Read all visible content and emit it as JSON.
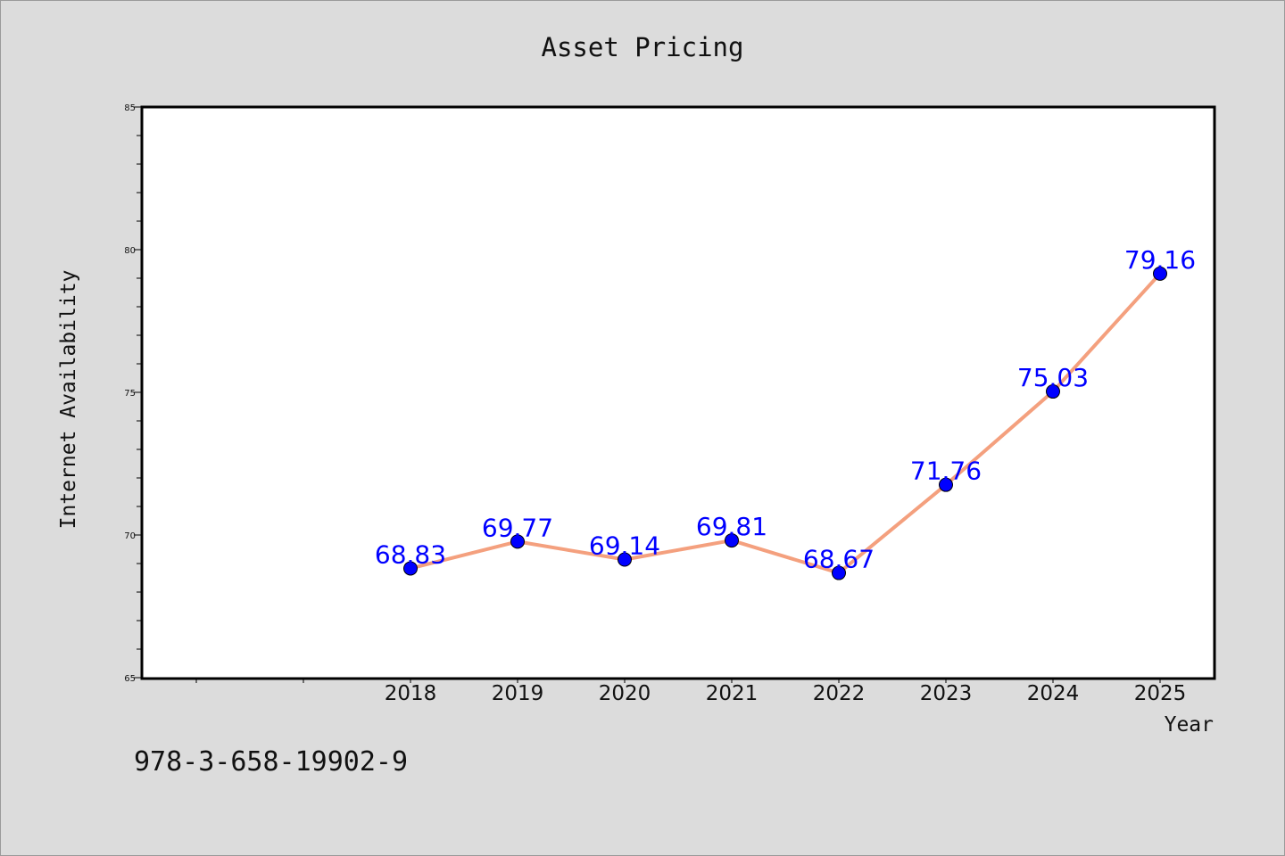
{
  "chart_data": {
    "type": "line",
    "title": "Asset Pricing",
    "xlabel": "Year",
    "ylabel": "Internet Availability",
    "x": [
      "2018",
      "2019",
      "2020",
      "2021",
      "2022",
      "2023",
      "2024",
      "2025"
    ],
    "series": [
      {
        "values": [
          68.83,
          69.77,
          69.14,
          69.81,
          68.67,
          71.76,
          75.03,
          79.16
        ],
        "labels": [
          "68.83",
          "69.77",
          "69.14",
          "69.81",
          "68.67",
          "71.76",
          "75.03",
          "79.16"
        ]
      }
    ],
    "ylim": [
      65,
      85
    ],
    "yticks": [
      "65",
      "70",
      "75",
      "80",
      "85"
    ],
    "grid": false,
    "colors": {
      "line": "#f4a07e",
      "marker": "#0000ff",
      "label": "#0000ff",
      "background": "#dcdcdc",
      "plot": "#ffffff"
    }
  },
  "footer": {
    "isbn": "978-3-658-19902-9"
  }
}
